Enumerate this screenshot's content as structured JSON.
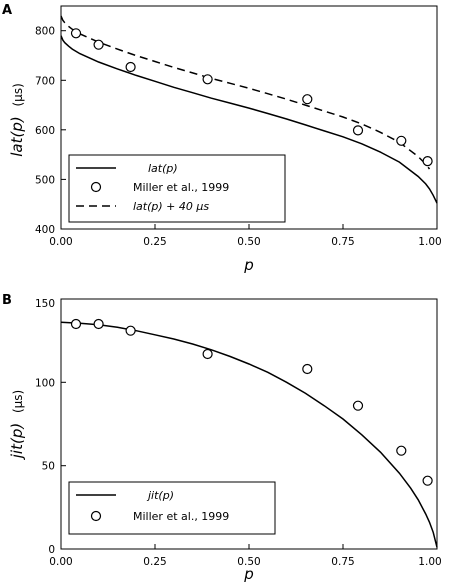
{
  "chart_data": [
    {
      "panel_letter": "A",
      "type": "line",
      "xlabel": "p",
      "ylabel": "lat(p)",
      "ylabel_unit": "(µs)",
      "xlim": [
        0.0,
        1.0
      ],
      "ylim": [
        400,
        850
      ],
      "xticks": [
        "0.00",
        "0.25",
        "0.50",
        "0.75",
        "1.00"
      ],
      "yticks": [
        "400",
        "500",
        "600",
        "700",
        "800"
      ],
      "grid": false,
      "legend_position": "bottom-left",
      "series": [
        {
          "name": "lat(p)",
          "style": "solid",
          "x": [
            0.0,
            0.005,
            0.01,
            0.02,
            0.03,
            0.05,
            0.1,
            0.15,
            0.2,
            0.25,
            0.3,
            0.35,
            0.4,
            0.45,
            0.5,
            0.55,
            0.6,
            0.65,
            0.7,
            0.75,
            0.8,
            0.85,
            0.9,
            0.95,
            0.97,
            0.98,
            0.99,
            1.0
          ],
          "y": [
            790,
            781,
            776,
            769,
            763,
            754,
            737,
            723,
            710,
            698,
            686,
            675,
            664,
            654,
            644,
            633,
            622,
            610,
            598,
            586,
            572,
            555,
            535,
            506,
            491,
            481,
            468,
            452
          ]
        },
        {
          "name": "Miller et al., 1999",
          "style": "marker",
          "x": [
            0.04,
            0.1,
            0.185,
            0.39,
            0.655,
            0.79,
            0.905,
            0.975
          ],
          "y": [
            795,
            772,
            727,
            702,
            662,
            599,
            578,
            537
          ]
        },
        {
          "name": "lat(p) + 40 µs",
          "style": "dashed",
          "x": [
            0.0,
            0.005,
            0.01,
            0.02,
            0.03,
            0.05,
            0.1,
            0.15,
            0.2,
            0.25,
            0.3,
            0.35,
            0.4,
            0.45,
            0.5,
            0.55,
            0.6,
            0.65,
            0.7,
            0.75,
            0.8,
            0.85,
            0.9,
            0.95,
            0.97,
            0.98
          ],
          "y": [
            830,
            821,
            816,
            809,
            803,
            794,
            777,
            763,
            750,
            738,
            726,
            715,
            704,
            694,
            684,
            673,
            662,
            650,
            638,
            626,
            612,
            595,
            575,
            546,
            531,
            521
          ]
        }
      ]
    },
    {
      "panel_letter": "B",
      "type": "line",
      "xlabel": "p",
      "ylabel": "jit(p)",
      "ylabel_unit": "(µs)",
      "xlim": [
        0.0,
        1.0
      ],
      "ylim": [
        0,
        150
      ],
      "xticks": [
        "0.00",
        "0.25",
        "0.50",
        "0.75",
        "1.00"
      ],
      "yticks": [
        "0",
        "50",
        "100",
        "150"
      ],
      "grid": false,
      "legend_position": "bottom-left",
      "series": [
        {
          "name": "jit(p)",
          "style": "solid",
          "x": [
            0.0,
            0.05,
            0.1,
            0.15,
            0.2,
            0.25,
            0.3,
            0.35,
            0.4,
            0.45,
            0.5,
            0.55,
            0.6,
            0.65,
            0.7,
            0.75,
            0.8,
            0.85,
            0.9,
            0.93,
            0.95,
            0.97,
            0.98,
            0.99,
            1.0
          ],
          "y": [
            136,
            135.5,
            134.5,
            133,
            131,
            128.5,
            126,
            123,
            119.5,
            115.5,
            111,
            106,
            100,
            93.5,
            86,
            78,
            68.5,
            58,
            45.5,
            36.5,
            29.5,
            21,
            16,
            10,
            1
          ]
        },
        {
          "name": "Miller et al., 1999",
          "style": "marker",
          "x": [
            0.04,
            0.1,
            0.185,
            0.39,
            0.655,
            0.79,
            0.905,
            0.975
          ],
          "y": [
            135,
            135,
            131,
            117,
            108,
            86,
            59,
            41
          ]
        }
      ]
    }
  ]
}
